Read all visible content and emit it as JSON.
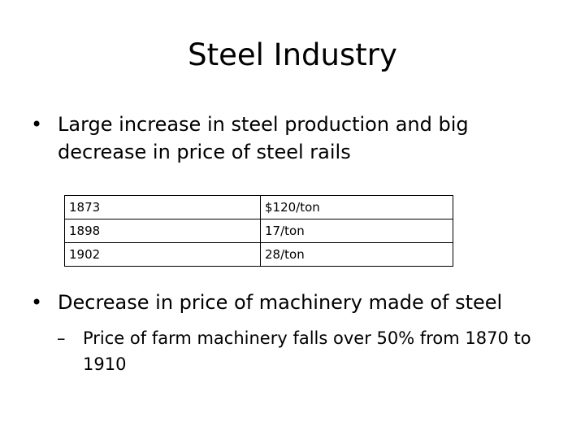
{
  "slide": {
    "title": "Steel Industry",
    "bullets": [
      {
        "marker": "•",
        "text": "Large increase in steel production and big decrease in price of steel rails"
      },
      {
        "marker": "•",
        "text": "Decrease in price of machinery made of steel",
        "sub_bullets": [
          {
            "marker": "–",
            "text": "Price of farm machinery falls over 50% from 1870 to 1910"
          }
        ]
      }
    ],
    "price_table": {
      "rows": [
        {
          "year": "1873",
          "price": "$120/ton"
        },
        {
          "year": "1898",
          "price": "17/ton"
        },
        {
          "year": "1902",
          "price": "28/ton"
        }
      ]
    }
  }
}
